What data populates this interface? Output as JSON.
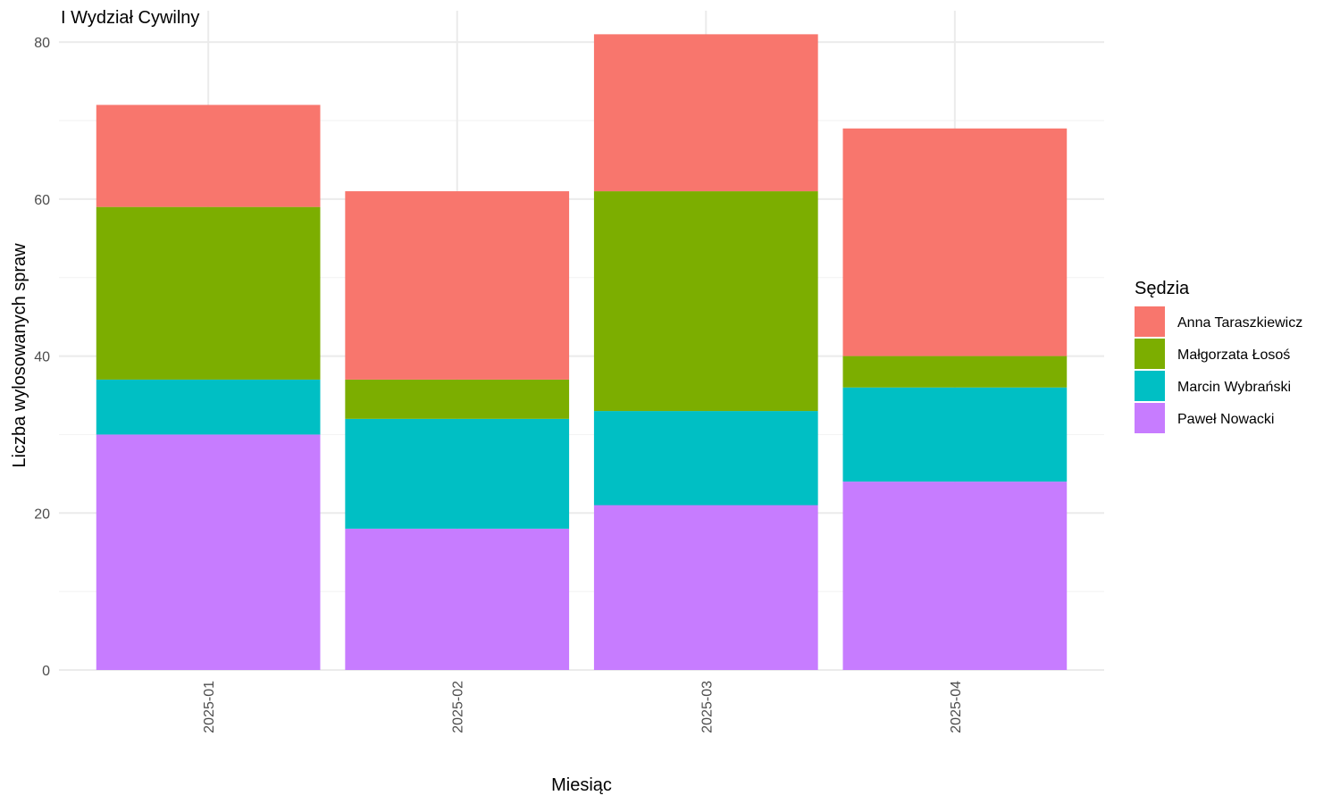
{
  "chart_data": {
    "type": "bar",
    "stacked": true,
    "title": "I Wydział Cywilny",
    "xlabel": "Miesiąc",
    "ylabel": "Liczba wylosowanych spraw",
    "categories": [
      "2025-01",
      "2025-02",
      "2025-03",
      "2025-04"
    ],
    "ylim": [
      0,
      84
    ],
    "yticks": [
      0,
      20,
      40,
      60,
      80
    ],
    "grid": true,
    "legend": {
      "title": "Sędzia",
      "position": "right"
    },
    "series": [
      {
        "name": "Paweł Nowacki",
        "color": "#C77CFF",
        "values": [
          30,
          18,
          21,
          24
        ]
      },
      {
        "name": "Marcin Wybrański",
        "color": "#00BFC4",
        "values": [
          7,
          14,
          12,
          12
        ]
      },
      {
        "name": "Małgorzata Łosoś",
        "color": "#7CAE00",
        "values": [
          22,
          5,
          28,
          4
        ]
      },
      {
        "name": "Anna Taraszkiewicz",
        "color": "#F8766D",
        "values": [
          13,
          24,
          20,
          29
        ]
      }
    ]
  }
}
